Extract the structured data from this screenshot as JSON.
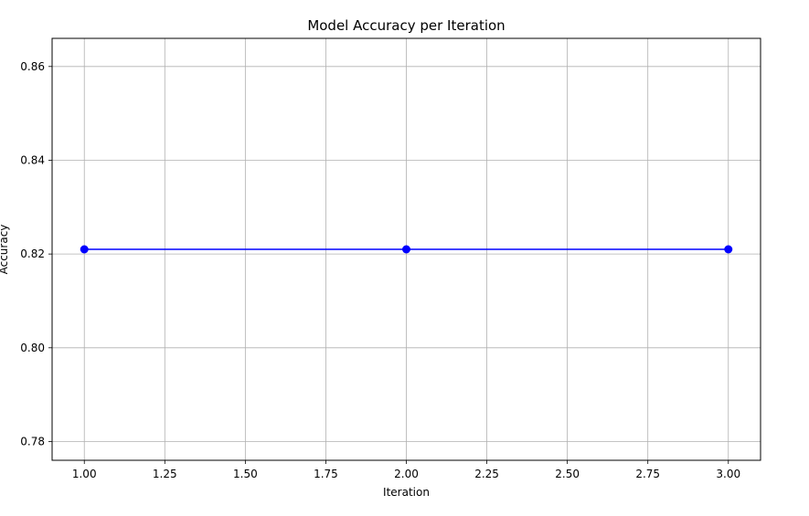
{
  "chart_data": {
    "type": "line",
    "title": "Model Accuracy per Iteration",
    "xlabel": "Iteration",
    "ylabel": "Accuracy",
    "xlim": [
      0.9,
      3.1
    ],
    "ylim": [
      0.776,
      0.866
    ],
    "xticks": [
      1.0,
      1.25,
      1.5,
      1.75,
      2.0,
      2.25,
      2.5,
      2.75,
      3.0
    ],
    "xtick_labels": [
      "1.00",
      "1.25",
      "1.50",
      "1.75",
      "2.00",
      "2.25",
      "2.50",
      "2.75",
      "3.00"
    ],
    "yticks": [
      0.78,
      0.8,
      0.82,
      0.84,
      0.86
    ],
    "ytick_labels": [
      "0.78",
      "0.80",
      "0.82",
      "0.84",
      "0.86"
    ],
    "grid": true,
    "series": [
      {
        "x": [
          1,
          2,
          3
        ],
        "y": [
          0.821,
          0.821,
          0.821
        ],
        "color": "#0000ff",
        "marker": "circle"
      }
    ]
  }
}
